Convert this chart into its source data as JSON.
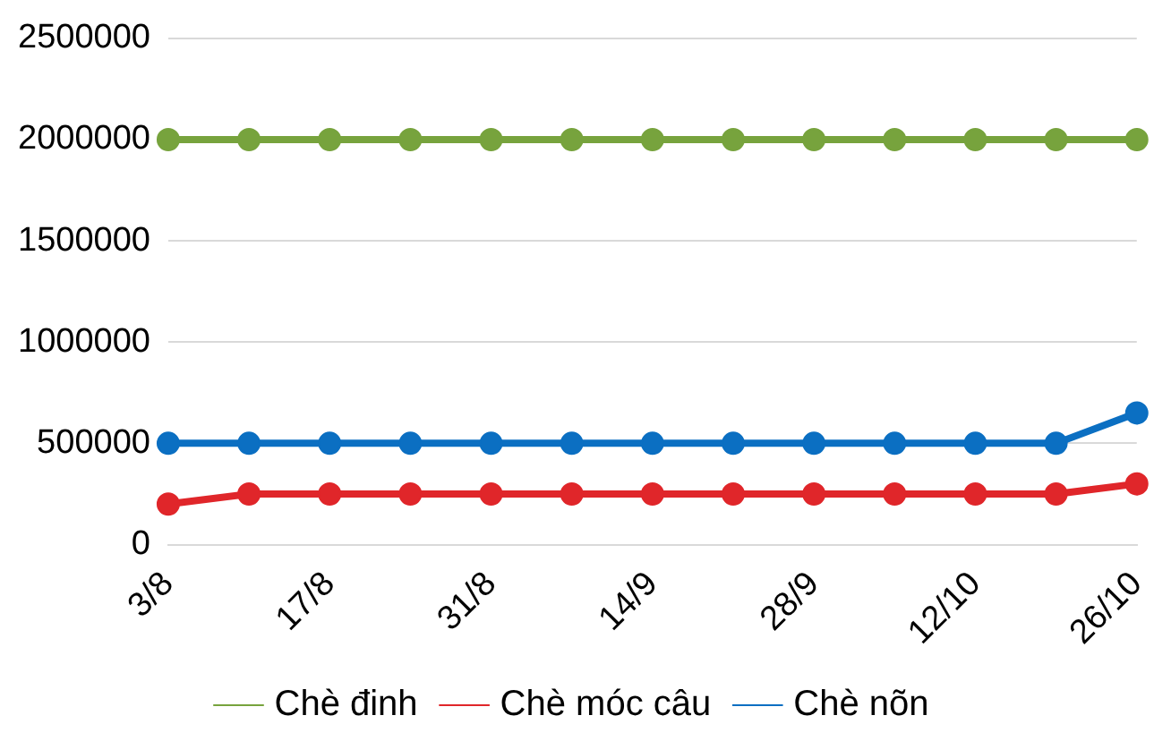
{
  "chart_data": {
    "type": "line",
    "categories": [
      "3/8",
      null,
      "17/8",
      null,
      "31/8",
      null,
      "14/9",
      null,
      "28/9",
      null,
      "12/10",
      null,
      "26/10"
    ],
    "series": [
      {
        "name": "Chè đinh",
        "color": "#77a33d",
        "values": [
          2000000,
          2000000,
          2000000,
          2000000,
          2000000,
          2000000,
          2000000,
          2000000,
          2000000,
          2000000,
          2000000,
          2000000,
          2000000
        ]
      },
      {
        "name": "Chè móc câu",
        "color": "#e0262a",
        "values": [
          200000,
          250000,
          250000,
          250000,
          250000,
          250000,
          250000,
          250000,
          250000,
          250000,
          250000,
          250000,
          300000
        ]
      },
      {
        "name": "Chè nõn",
        "color": "#0b6fc2",
        "values": [
          500000,
          500000,
          500000,
          500000,
          500000,
          500000,
          500000,
          500000,
          500000,
          500000,
          500000,
          500000,
          650000
        ]
      }
    ],
    "ylim": [
      0,
      2500000
    ],
    "yticks": [
      0,
      500000,
      1000000,
      1500000,
      2000000,
      2500000
    ],
    "grid": "y",
    "legend": "bottom",
    "marker": "circle",
    "line_style": "solid"
  }
}
